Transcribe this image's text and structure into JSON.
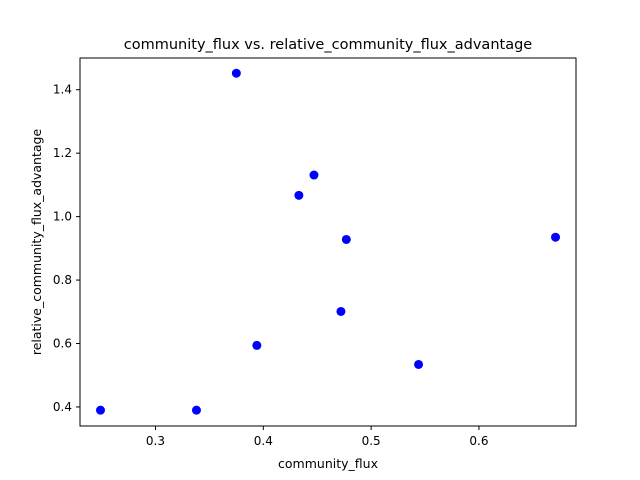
{
  "chart_data": {
    "type": "scatter",
    "title": "community_flux vs. relative_community_flux_advantage",
    "xlabel": "community_flux",
    "ylabel": "relative_community_flux_advantage",
    "xlim": [
      0.23,
      0.69
    ],
    "ylim": [
      0.34,
      1.5
    ],
    "xticks": [
      0.3,
      0.4,
      0.5,
      0.6
    ],
    "xtick_labels": [
      "0.3",
      "0.4",
      "0.5",
      "0.6"
    ],
    "yticks": [
      0.4,
      0.6,
      0.8,
      1.0,
      1.2,
      1.4
    ],
    "ytick_labels": [
      "0.4",
      "0.6",
      "0.8",
      "1.0",
      "1.2",
      "1.4"
    ],
    "grid": false,
    "marker_color": "#0000ff",
    "points": [
      {
        "x": 0.249,
        "y": 0.39
      },
      {
        "x": 0.338,
        "y": 0.39
      },
      {
        "x": 0.375,
        "y": 1.452
      },
      {
        "x": 0.394,
        "y": 0.594
      },
      {
        "x": 0.433,
        "y": 1.067
      },
      {
        "x": 0.447,
        "y": 1.131
      },
      {
        "x": 0.472,
        "y": 0.701
      },
      {
        "x": 0.477,
        "y": 0.928
      },
      {
        "x": 0.544,
        "y": 0.534
      },
      {
        "x": 0.671,
        "y": 0.935
      }
    ]
  }
}
